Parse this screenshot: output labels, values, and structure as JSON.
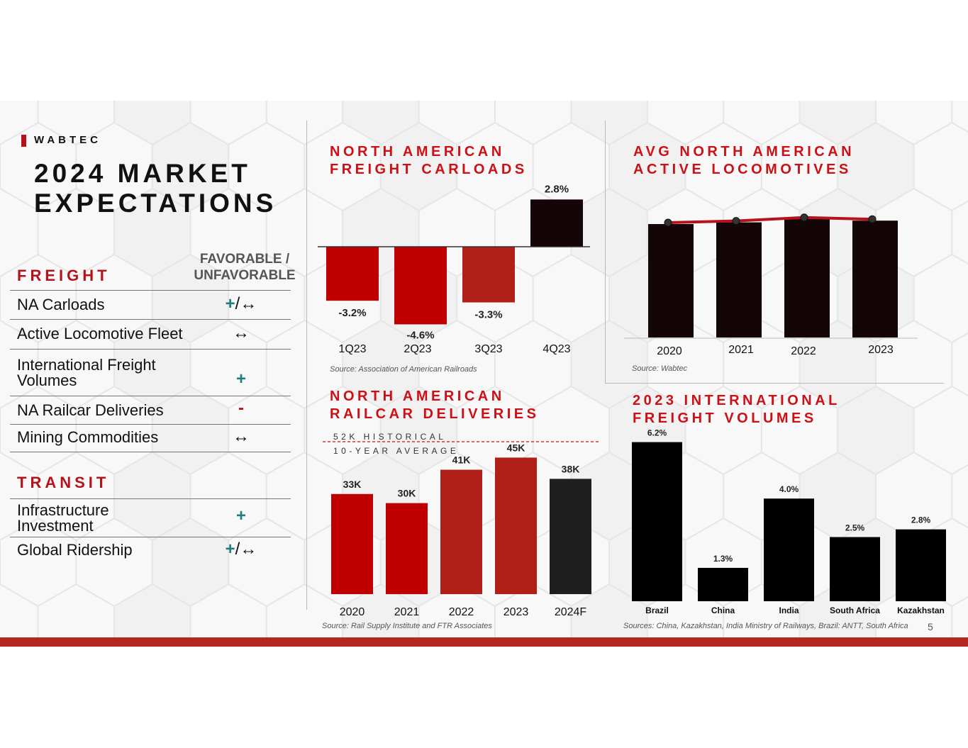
{
  "brand": "WABTEC",
  "title": "2024 MARKET\nEXPECTATIONS",
  "page_number": "5",
  "colors": {
    "brand_red": "#b5121b",
    "accent_teal": "#1d7f7f",
    "dark": "#140606"
  },
  "freight": {
    "label": "FREIGHT",
    "fav_header": "FAVORABLE /\nUNFAVORABLE",
    "rows": [
      {
        "label": "NA Carloads",
        "plus": "+",
        "symbol": "/↔"
      },
      {
        "label": "Active Locomotive Fleet",
        "plus": "",
        "symbol": "↔"
      },
      {
        "label": "International Freight\nVolumes",
        "plus": "+",
        "symbol": ""
      },
      {
        "label": "NA Railcar Deliveries",
        "plus": "-",
        "symbol": ""
      },
      {
        "label": "Mining Commodities",
        "plus": "",
        "symbol": "↔"
      }
    ]
  },
  "transit": {
    "label": "TRANSIT",
    "rows": [
      {
        "label": "Infrastructure\nInvestment",
        "plus": "+",
        "symbol": ""
      },
      {
        "label": "Global Ridership",
        "plus": "+",
        "symbol": "/↔"
      }
    ]
  },
  "chart_data": [
    {
      "id": "carloads",
      "type": "bar",
      "title": "NORTH AMERICAN\nFREIGHT CARLOADS",
      "categories": [
        "1Q23",
        "2Q23",
        "3Q23",
        "4Q23"
      ],
      "values": [
        -3.2,
        -4.6,
        -3.3,
        2.8
      ],
      "labels": [
        "-3.2%",
        "-4.6%",
        "-3.3%",
        "2.8%"
      ],
      "colors": [
        "#c00000",
        "#c00000",
        "#b02018",
        "#140606"
      ],
      "ylim": [
        -5,
        3
      ],
      "source": "Source: Association of American Railroads"
    },
    {
      "id": "locomotives",
      "type": "bar",
      "title": "AVG NORTH AMERICAN\nACTIVE LOCOMOTIVES",
      "categories": [
        "2020",
        "2021",
        "2022",
        "2023"
      ],
      "values": [
        100,
        101.5,
        104.5,
        103
      ],
      "trend_line": true,
      "ylim": [
        0,
        110
      ],
      "source": "Source: Wabtec"
    },
    {
      "id": "railcars",
      "type": "bar",
      "title": "NORTH AMERICAN\nRAILCAR DELIVERIES",
      "categories": [
        "2020",
        "2021",
        "2022",
        "2023",
        "2024F"
      ],
      "values": [
        33,
        30,
        41,
        45,
        38
      ],
      "labels": [
        "33K",
        "30K",
        "41K",
        "45K",
        "38K"
      ],
      "colors": [
        "#c00000",
        "#c00000",
        "#b02018",
        "#b02018",
        "#1f1f1f"
      ],
      "ylim": [
        0,
        50
      ],
      "reference_line": {
        "value": 52,
        "label_line1": "52K HISTORICAL",
        "label_line2": "10-YEAR AVERAGE"
      },
      "source": "Source: Rail Supply Institute and FTR Associates"
    },
    {
      "id": "intl",
      "type": "bar",
      "title": "2023 INTERNATIONAL\nFREIGHT VOLUMES",
      "categories": [
        "Brazil",
        "China",
        "India",
        "South Africa",
        "Kazakhstan"
      ],
      "values": [
        6.2,
        1.3,
        4.0,
        2.5,
        2.8
      ],
      "labels": [
        "6.2%",
        "1.3%",
        "4.0%",
        "2.5%",
        "2.8%"
      ],
      "ylim": [
        0,
        7
      ],
      "source": "Sources: China, Kazakhstan, India Ministry of Railways, Brazil: ANTT, South Africa"
    }
  ]
}
